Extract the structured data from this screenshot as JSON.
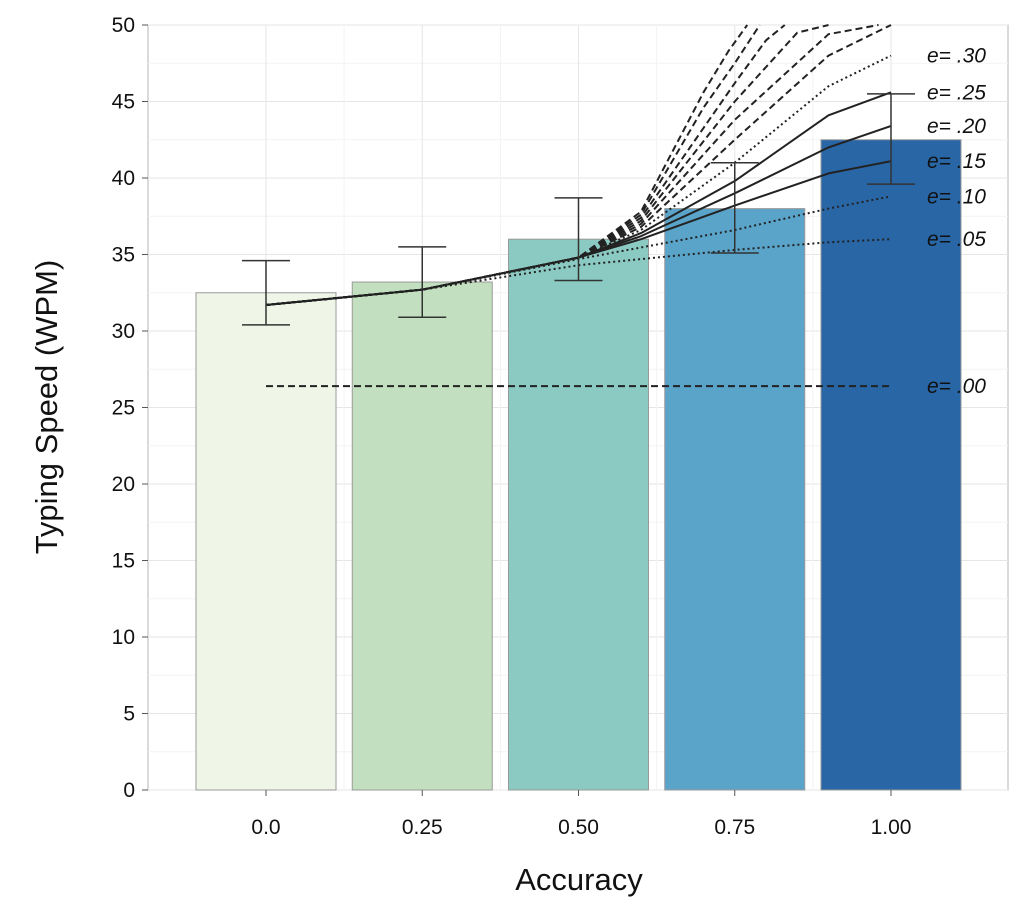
{
  "chart_data": {
    "type": "bar",
    "xlabel": "Accuracy",
    "ylabel": "Typing Speed (WPM)",
    "categories": [
      "0.0",
      "0.25",
      "0.50",
      "0.75",
      "1.00"
    ],
    "x": [
      0.0,
      0.25,
      0.5,
      0.75,
      1.0
    ],
    "values": [
      32.5,
      33.2,
      36.0,
      38.0,
      42.5
    ],
    "error_low": [
      30.4,
      30.9,
      33.3,
      35.1,
      39.6
    ],
    "error_high": [
      34.6,
      35.5,
      38.7,
      41.0,
      45.5
    ],
    "bar_colors": [
      "#eff6e8",
      "#c2e0bf",
      "#8bcac2",
      "#5aa3c9",
      "#2866a6"
    ],
    "ylim": [
      0,
      50
    ],
    "yticks": [
      0,
      5,
      10,
      15,
      20,
      25,
      30,
      35,
      40,
      45,
      50
    ],
    "grid": true,
    "curves": [
      {
        "label": "e= .00",
        "style": "dashed",
        "x": [
          0.0,
          1.0
        ],
        "y": [
          26.4,
          26.4
        ]
      },
      {
        "label": "e= .05",
        "style": "dotted",
        "x": [
          0.0,
          0.25,
          0.5,
          0.75,
          0.9,
          1.0
        ],
        "y": [
          31.7,
          32.7,
          34.3,
          35.3,
          35.8,
          36.0
        ]
      },
      {
        "label": "e= .10",
        "style": "dotted",
        "x": [
          0.0,
          0.25,
          0.5,
          0.75,
          0.9,
          1.0
        ],
        "y": [
          31.7,
          32.7,
          34.7,
          36.6,
          38.0,
          38.8
        ]
      },
      {
        "label": "e= .15",
        "style": "solid",
        "x": [
          0.0,
          0.25,
          0.5,
          0.6,
          0.75,
          0.9,
          1.0
        ],
        "y": [
          31.7,
          32.7,
          34.8,
          36.0,
          38.2,
          40.3,
          41.1
        ]
      },
      {
        "label": "e= .20",
        "style": "solid",
        "x": [
          0.0,
          0.25,
          0.5,
          0.6,
          0.75,
          0.9,
          1.0
        ],
        "y": [
          31.7,
          32.7,
          34.8,
          36.2,
          39.0,
          42.0,
          43.4
        ]
      },
      {
        "label": "e= .25",
        "style": "solid",
        "x": [
          0.0,
          0.25,
          0.5,
          0.6,
          0.75,
          0.9,
          1.0
        ],
        "y": [
          31.7,
          32.7,
          34.8,
          36.4,
          39.8,
          44.1,
          45.6
        ]
      },
      {
        "label": "e= .30",
        "style": "dotted",
        "x": [
          0.0,
          0.25,
          0.5,
          0.6,
          0.75,
          0.9,
          1.0
        ],
        "y": [
          31.7,
          32.7,
          34.8,
          36.6,
          41.0,
          46.0,
          48.0
        ]
      },
      {
        "label": "",
        "style": "dashed",
        "x": [
          0.0,
          0.25,
          0.5,
          0.6,
          0.75,
          0.9,
          1.0
        ],
        "y": [
          31.7,
          32.7,
          34.8,
          36.8,
          42.5,
          48.0,
          50.0
        ]
      },
      {
        "label": "",
        "style": "dashed",
        "x": [
          0.0,
          0.25,
          0.5,
          0.6,
          0.75,
          0.9,
          0.98
        ],
        "y": [
          31.7,
          32.7,
          34.8,
          37.0,
          43.8,
          49.4,
          50.0
        ]
      },
      {
        "label": "",
        "style": "dashed",
        "x": [
          0.0,
          0.25,
          0.5,
          0.6,
          0.75,
          0.85,
          0.9
        ],
        "y": [
          31.7,
          32.7,
          34.8,
          37.2,
          45.0,
          49.5,
          50.0
        ]
      },
      {
        "label": "",
        "style": "dashed",
        "x": [
          0.0,
          0.25,
          0.5,
          0.6,
          0.75,
          0.8,
          0.83
        ],
        "y": [
          31.7,
          32.7,
          34.8,
          37.4,
          46.2,
          49.0,
          50.0
        ]
      },
      {
        "label": "",
        "style": "dashed",
        "x": [
          0.0,
          0.25,
          0.5,
          0.6,
          0.7,
          0.75,
          0.79
        ],
        "y": [
          31.7,
          32.7,
          34.8,
          37.6,
          44.6,
          47.5,
          50.0
        ]
      },
      {
        "label": "",
        "style": "dashed",
        "x": [
          0.0,
          0.25,
          0.5,
          0.6,
          0.7,
          0.74,
          0.77
        ],
        "y": [
          31.7,
          32.7,
          34.8,
          37.8,
          45.6,
          48.3,
          50.0
        ]
      }
    ]
  }
}
